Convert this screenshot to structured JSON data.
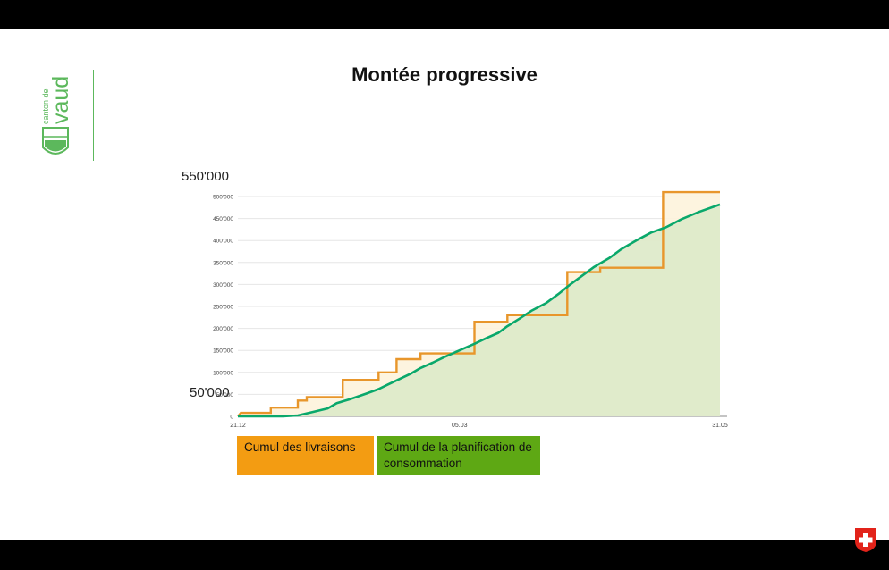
{
  "slide": {
    "title": "Montée progressive",
    "brand": {
      "line1": "canton de",
      "line2": "vaud",
      "icon": "vaud-coat-of-arms"
    },
    "flag_icon": "swiss-flag-icon"
  },
  "annotations": {
    "top_value": "550'000",
    "low_value": "50'000"
  },
  "legend": {
    "deliveries": "Cumul des livraisons",
    "planning": "Cumul de la planification de consommation"
  },
  "colors": {
    "deliveries": "#e8962b",
    "planning": "#0aa86b",
    "planning_fill": "#dfe9c6",
    "gap_fill": "#d9f7f0",
    "orange_legend": "#f39c12",
    "green_legend": "#5ea814"
  },
  "chart_data": {
    "type": "line",
    "x_tick_labels": [
      "21.12",
      "05.03",
      "31.05"
    ],
    "y_tick_labels": [
      "0",
      "50'000",
      "100'000",
      "150'000",
      "200'000",
      "250'000",
      "300'000",
      "350'000",
      "400'000",
      "450'000",
      "500'000"
    ],
    "ylim": [
      0,
      500000
    ],
    "grid": true,
    "x_date_range": [
      "21.12",
      "31.05"
    ],
    "series": [
      {
        "name": "Cumul des livraisons",
        "style": "step",
        "points": [
          [
            "21.12",
            0
          ],
          [
            "22.12",
            8000
          ],
          [
            "01.01",
            8000
          ],
          [
            "01.01",
            20000
          ],
          [
            "10.01",
            20000
          ],
          [
            "10.01",
            36000
          ],
          [
            "13.01",
            36000
          ],
          [
            "13.01",
            44000
          ],
          [
            "25.01",
            44000
          ],
          [
            "25.01",
            83000
          ],
          [
            "06.02",
            83000
          ],
          [
            "06.02",
            100000
          ],
          [
            "12.02",
            100000
          ],
          [
            "12.02",
            130000
          ],
          [
            "20.02",
            130000
          ],
          [
            "20.02",
            143000
          ],
          [
            "10.03",
            143000
          ],
          [
            "10.03",
            215000
          ],
          [
            "21.03",
            215000
          ],
          [
            "21.03",
            230000
          ],
          [
            "10.04",
            230000
          ],
          [
            "10.04",
            328000
          ],
          [
            "21.04",
            328000
          ],
          [
            "21.04",
            338000
          ],
          [
            "12.05",
            338000
          ],
          [
            "12.05",
            510000
          ],
          [
            "31.05",
            510000
          ]
        ]
      },
      {
        "name": "Cumul de la planification de consommation",
        "style": "line",
        "points": [
          [
            "21.12",
            0
          ],
          [
            "05.01",
            0
          ],
          [
            "10.01",
            2000
          ],
          [
            "15.01",
            10000
          ],
          [
            "20.01",
            18000
          ],
          [
            "23.01",
            30000
          ],
          [
            "27.01",
            38000
          ],
          [
            "30.01",
            45000
          ],
          [
            "02.02",
            52000
          ],
          [
            "06.02",
            62000
          ],
          [
            "09.02",
            72000
          ],
          [
            "13.02",
            85000
          ],
          [
            "17.02",
            98000
          ],
          [
            "20.02",
            110000
          ],
          [
            "24.02",
            122000
          ],
          [
            "28.02",
            135000
          ],
          [
            "05.03",
            150000
          ],
          [
            "10.03",
            165000
          ],
          [
            "14.03",
            178000
          ],
          [
            "18.03",
            190000
          ],
          [
            "21.03",
            205000
          ],
          [
            "25.03",
            222000
          ],
          [
            "29.03",
            240000
          ],
          [
            "03.04",
            258000
          ],
          [
            "07.04",
            278000
          ],
          [
            "11.04",
            300000
          ],
          [
            "15.04",
            320000
          ],
          [
            "19.04",
            340000
          ],
          [
            "24.04",
            360000
          ],
          [
            "28.04",
            380000
          ],
          [
            "03.05",
            400000
          ],
          [
            "08.05",
            418000
          ],
          [
            "13.05",
            430000
          ],
          [
            "18.05",
            448000
          ],
          [
            "24.05",
            465000
          ],
          [
            "31.05",
            482000
          ]
        ]
      }
    ]
  }
}
